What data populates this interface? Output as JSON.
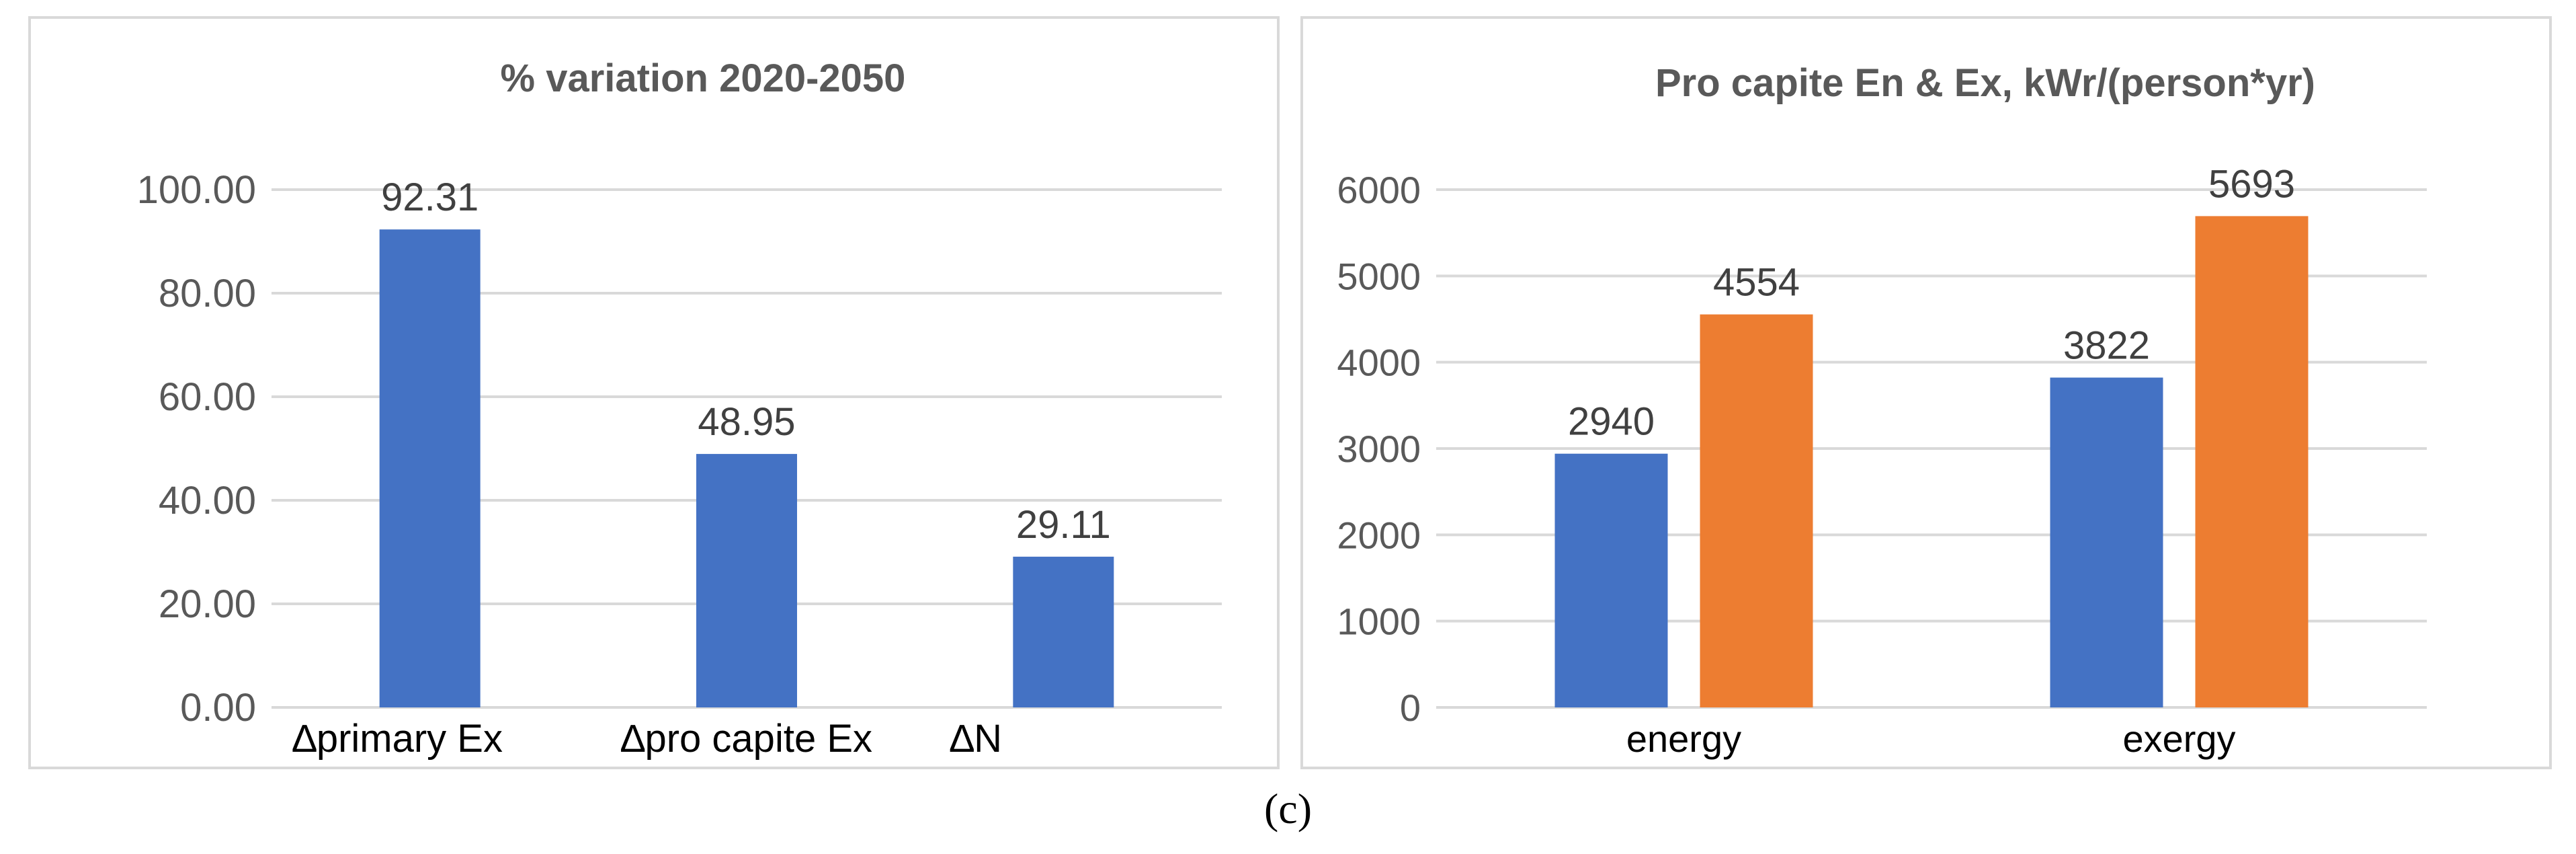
{
  "figure_label": "(c)",
  "chart_data": [
    {
      "type": "bar",
      "title": "% variation 2020-2050",
      "xlabel": "",
      "ylabel": "",
      "categories": [
        "∆primary Ex",
        "∆pro capite Ex",
        "∆N"
      ],
      "series": [
        {
          "values": [
            92.31,
            48.95,
            29.11
          ],
          "color": "#4472C4"
        }
      ],
      "data_labels": [
        "92.31",
        "48.95",
        "29.11"
      ],
      "ylim": [
        0,
        100
      ],
      "yticks": [
        "0.00",
        "20.00",
        "40.00",
        "60.00",
        "80.00",
        "100.00"
      ],
      "grid": true,
      "legend": "none"
    },
    {
      "type": "bar",
      "title": "Pro capite En & Ex, kWr/(person*yr)",
      "xlabel": "",
      "ylabel": "",
      "categories": [
        "energy",
        "exergy"
      ],
      "series": [
        {
          "values": [
            2940,
            3822
          ],
          "color": "#4472C4"
        },
        {
          "values": [
            4554,
            5693
          ],
          "color": "#ED7D31"
        }
      ],
      "data_labels": [
        [
          "2940",
          "3822"
        ],
        [
          "4554",
          "5693"
        ]
      ],
      "ylim": [
        0,
        6000
      ],
      "yticks": [
        "0",
        "1000",
        "2000",
        "3000",
        "4000",
        "5000",
        "6000"
      ],
      "grid": true,
      "legend": "none"
    }
  ]
}
